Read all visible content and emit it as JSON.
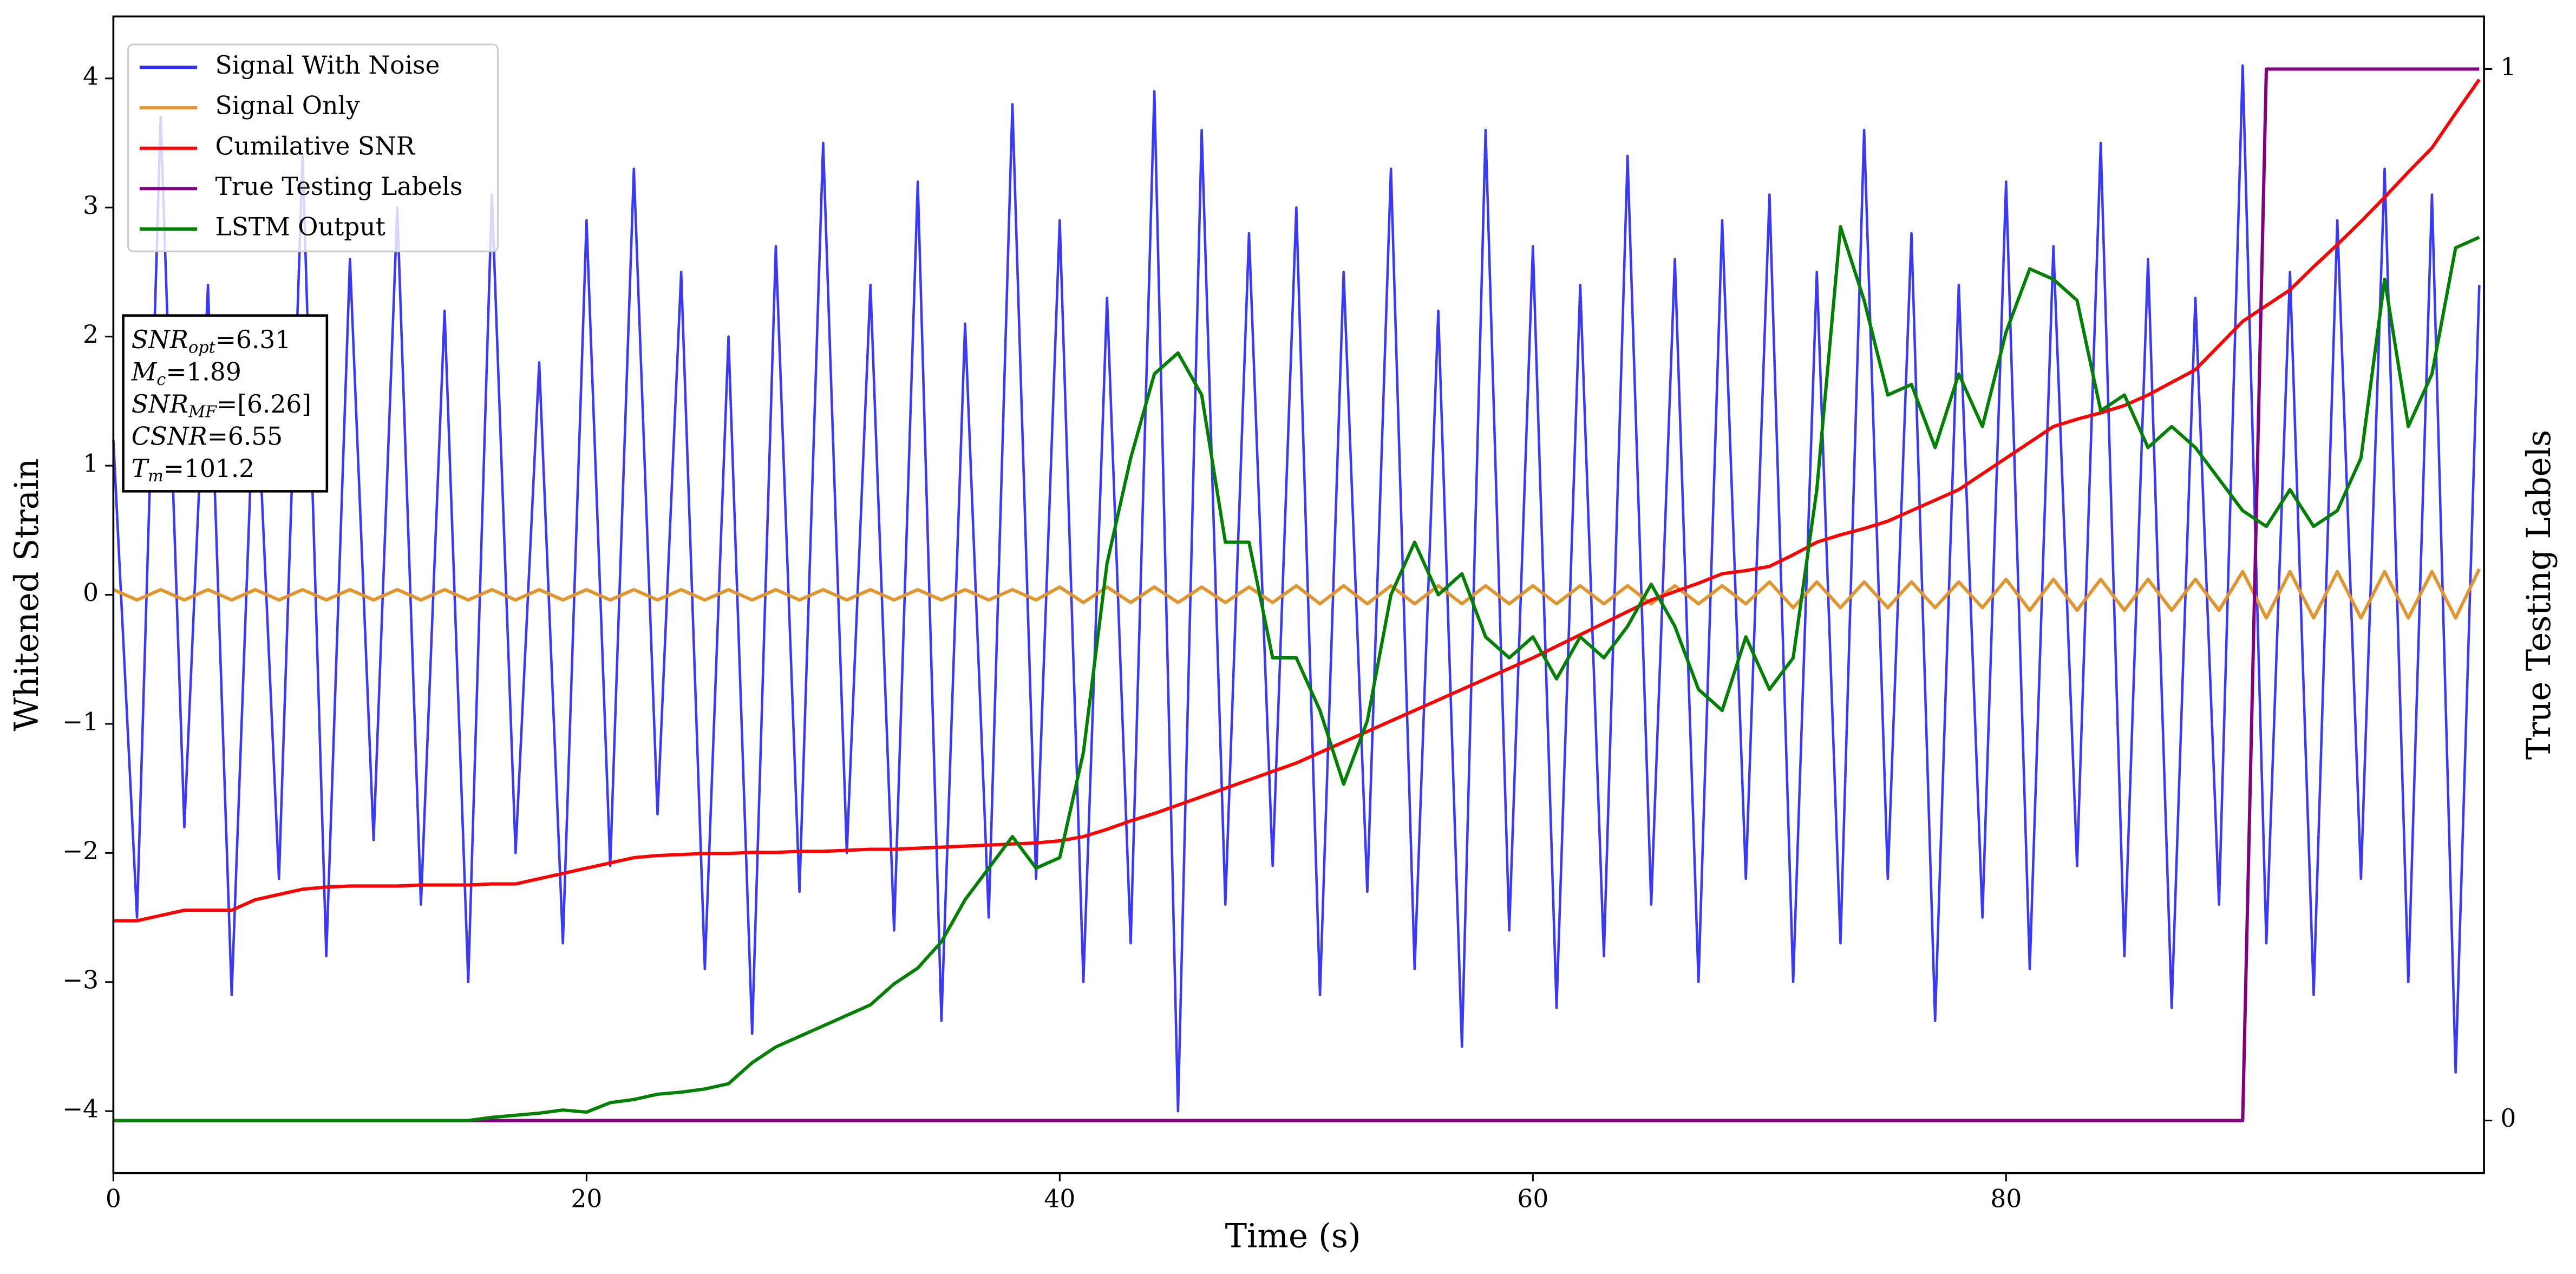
{
  "chart_data": {
    "type": "line",
    "xlabel": "Time (s)",
    "ylabel": "Whitened Strain",
    "y2label": "True Testing Labels",
    "xlim": [
      0,
      100.2
    ],
    "xticks": [
      0,
      20,
      40,
      60,
      80
    ],
    "ylim": [
      -4.48,
      4.48
    ],
    "yticks": [
      {
        "value": -4,
        "label": "−4"
      },
      {
        "value": -3,
        "label": "−3"
      },
      {
        "value": -2,
        "label": "−2"
      },
      {
        "value": -1,
        "label": "−1"
      },
      0,
      1,
      2,
      3,
      4
    ],
    "y2lim": [
      -0.05,
      1.05
    ],
    "y2ticks": [
      0,
      1
    ],
    "legend": "upper left",
    "x": [
      0,
      1,
      2,
      3,
      4,
      5,
      6,
      7,
      8,
      9,
      10,
      11,
      12,
      13,
      14,
      15,
      16,
      17,
      18,
      19,
      20,
      21,
      22,
      23,
      24,
      25,
      26,
      27,
      28,
      29,
      30,
      31,
      32,
      33,
      34,
      35,
      36,
      37,
      38,
      39,
      40,
      41,
      42,
      43,
      44,
      45,
      46,
      47,
      48,
      49,
      50,
      51,
      52,
      53,
      54,
      55,
      56,
      57,
      58,
      59,
      60,
      61,
      62,
      63,
      64,
      65,
      66,
      67,
      68,
      69,
      70,
      71,
      72,
      73,
      74,
      75,
      76,
      77,
      78,
      79,
      80,
      81,
      82,
      83,
      84,
      85,
      86,
      87,
      88,
      89,
      90,
      91,
      92,
      93,
      94,
      95,
      96,
      97,
      98,
      99,
      100
    ],
    "series": [
      {
        "name": "Signal With Noise",
        "color": "#2f2ff5",
        "values": [
          1.2,
          -2.5,
          3.7,
          -1.8,
          2.4,
          -3.1,
          1.9,
          -2.2,
          3.4,
          -2.8,
          2.6,
          -1.9,
          3.0,
          -2.4,
          2.2,
          -3.0,
          3.1,
          -2.0,
          1.8,
          -2.7,
          2.9,
          -2.1,
          3.3,
          -1.7,
          2.5,
          -2.9,
          2.0,
          -3.4,
          2.7,
          -2.3,
          3.5,
          -2.0,
          2.4,
          -2.6,
          3.2,
          -3.3,
          2.1,
          -2.5,
          3.8,
          -2.2,
          2.9,
          -3.0,
          2.3,
          -2.7,
          3.9,
          -4.0,
          3.6,
          -2.4,
          2.8,
          -2.1,
          3.0,
          -3.1,
          2.5,
          -2.3,
          3.3,
          -2.9,
          2.2,
          -3.5,
          3.6,
          -2.6,
          2.7,
          -3.2,
          2.4,
          -2.8,
          3.4,
          -2.4,
          2.6,
          -3.0,
          2.9,
          -2.2,
          3.1,
          -3.0,
          2.5,
          -2.7,
          3.6,
          -2.2,
          2.8,
          -3.3,
          2.4,
          -2.5,
          3.2,
          -2.9,
          2.7,
          -2.1,
          3.5,
          -2.8,
          2.6,
          -3.2,
          2.3,
          -2.4,
          4.1,
          -2.7,
          2.5,
          -3.1,
          2.9,
          -2.2,
          3.3,
          -3.0,
          3.1,
          -3.7,
          2.4
        ]
      },
      {
        "name": "Signal Only",
        "color": "#e0952f",
        "values": [
          0.04,
          -0.04,
          0.04,
          -0.04,
          0.04,
          -0.04,
          0.04,
          -0.04,
          0.04,
          -0.04,
          0.04,
          -0.04,
          0.04,
          -0.04,
          0.04,
          -0.04,
          0.04,
          -0.04,
          0.04,
          -0.04,
          0.04,
          -0.04,
          0.04,
          -0.04,
          0.04,
          -0.04,
          0.04,
          -0.04,
          0.04,
          -0.04,
          0.04,
          -0.04,
          0.04,
          -0.04,
          0.04,
          -0.04,
          0.04,
          -0.04,
          0.04,
          -0.04,
          0.06,
          -0.06,
          0.06,
          -0.06,
          0.06,
          -0.06,
          0.06,
          -0.06,
          0.06,
          -0.06,
          0.07,
          -0.07,
          0.07,
          -0.07,
          0.07,
          -0.07,
          0.07,
          -0.07,
          0.07,
          -0.07,
          0.07,
          -0.07,
          0.07,
          -0.07,
          0.07,
          -0.07,
          0.07,
          -0.07,
          0.07,
          -0.07,
          0.1,
          -0.1,
          0.1,
          -0.1,
          0.1,
          -0.1,
          0.1,
          -0.1,
          0.1,
          -0.1,
          0.12,
          -0.12,
          0.12,
          -0.12,
          0.12,
          -0.12,
          0.12,
          -0.12,
          0.12,
          -0.12,
          0.18,
          -0.18,
          0.18,
          -0.18,
          0.18,
          -0.18,
          0.18,
          -0.18,
          0.18,
          -0.18,
          0.2
        ]
      },
      {
        "name": "Cumilative SNR",
        "color": "#ff0000",
        "axis": "y2",
        "values": [
          0.19,
          0.19,
          0.195,
          0.2,
          0.2,
          0.2,
          0.21,
          0.215,
          0.22,
          0.222,
          0.223,
          0.223,
          0.223,
          0.224,
          0.224,
          0.224,
          0.225,
          0.225,
          0.23,
          0.235,
          0.24,
          0.245,
          0.25,
          0.252,
          0.253,
          0.254,
          0.254,
          0.255,
          0.255,
          0.256,
          0.256,
          0.257,
          0.258,
          0.258,
          0.259,
          0.26,
          0.261,
          0.262,
          0.263,
          0.264,
          0.266,
          0.27,
          0.277,
          0.285,
          0.292,
          0.3,
          0.308,
          0.316,
          0.324,
          0.332,
          0.34,
          0.35,
          0.36,
          0.37,
          0.38,
          0.39,
          0.4,
          0.41,
          0.42,
          0.43,
          0.44,
          0.451,
          0.462,
          0.473,
          0.484,
          0.495,
          0.503,
          0.511,
          0.52,
          0.523,
          0.527,
          0.538,
          0.55,
          0.557,
          0.563,
          0.57,
          0.58,
          0.59,
          0.6,
          0.615,
          0.63,
          0.645,
          0.66,
          0.667,
          0.673,
          0.68,
          0.69,
          0.702,
          0.714,
          0.737,
          0.76,
          0.775,
          0.79,
          0.812,
          0.833,
          0.855,
          0.878,
          0.902,
          0.925,
          0.958,
          0.99
        ]
      },
      {
        "name": "True Testing Labels",
        "color": "#800080",
        "axis": "y2",
        "values": [
          0,
          0,
          0,
          0,
          0,
          0,
          0,
          0,
          0,
          0,
          0,
          0,
          0,
          0,
          0,
          0,
          0,
          0,
          0,
          0,
          0,
          0,
          0,
          0,
          0,
          0,
          0,
          0,
          0,
          0,
          0,
          0,
          0,
          0,
          0,
          0,
          0,
          0,
          0,
          0,
          0,
          0,
          0,
          0,
          0,
          0,
          0,
          0,
          0,
          0,
          0,
          0,
          0,
          0,
          0,
          0,
          0,
          0,
          0,
          0,
          0,
          0,
          0,
          0,
          0,
          0,
          0,
          0,
          0,
          0,
          0,
          0,
          0,
          0,
          0,
          0,
          0,
          0,
          0,
          0,
          0,
          0,
          0,
          0,
          0,
          0,
          0,
          0,
          0,
          0,
          0,
          1,
          1,
          1,
          1,
          1,
          1,
          1,
          1,
          1,
          1
        ]
      },
      {
        "name": "LSTM Output",
        "color": "#008000",
        "axis": "y2",
        "values": [
          0,
          0,
          0,
          0,
          0,
          0,
          0,
          0,
          0,
          0,
          0,
          0,
          0,
          0,
          0,
          0,
          0.003,
          0.005,
          0.007,
          0.01,
          0.008,
          0.017,
          0.02,
          0.025,
          0.027,
          0.03,
          0.035,
          0.055,
          0.07,
          0.08,
          0.09,
          0.1,
          0.11,
          0.13,
          0.145,
          0.17,
          0.21,
          0.24,
          0.27,
          0.24,
          0.25,
          0.35,
          0.53,
          0.63,
          0.71,
          0.73,
          0.69,
          0.55,
          0.55,
          0.44,
          0.44,
          0.39,
          0.32,
          0.38,
          0.5,
          0.55,
          0.5,
          0.52,
          0.46,
          0.44,
          0.46,
          0.42,
          0.46,
          0.44,
          0.47,
          0.51,
          0.47,
          0.41,
          0.39,
          0.46,
          0.41,
          0.44,
          0.6,
          0.85,
          0.78,
          0.69,
          0.7,
          0.64,
          0.71,
          0.66,
          0.75,
          0.81,
          0.8,
          0.78,
          0.675,
          0.69,
          0.64,
          0.66,
          0.64,
          0.61,
          0.58,
          0.565,
          0.6,
          0.565,
          0.58,
          0.63,
          0.8,
          0.66,
          0.71,
          0.83,
          0.84
        ]
      }
    ],
    "annotation": [
      {
        "symbol": "SNR",
        "subscript": "opt",
        "text": "=6.31"
      },
      {
        "symbol": "M",
        "subscript": "c",
        "text": "=1.89"
      },
      {
        "symbol": "SNR",
        "subscript": "MF",
        "text": "=[6.26]"
      },
      {
        "symbol": "CSNR",
        "text": "=6.55"
      },
      {
        "symbol": "T",
        "subscript": "m",
        "text": "=101.2"
      }
    ]
  }
}
